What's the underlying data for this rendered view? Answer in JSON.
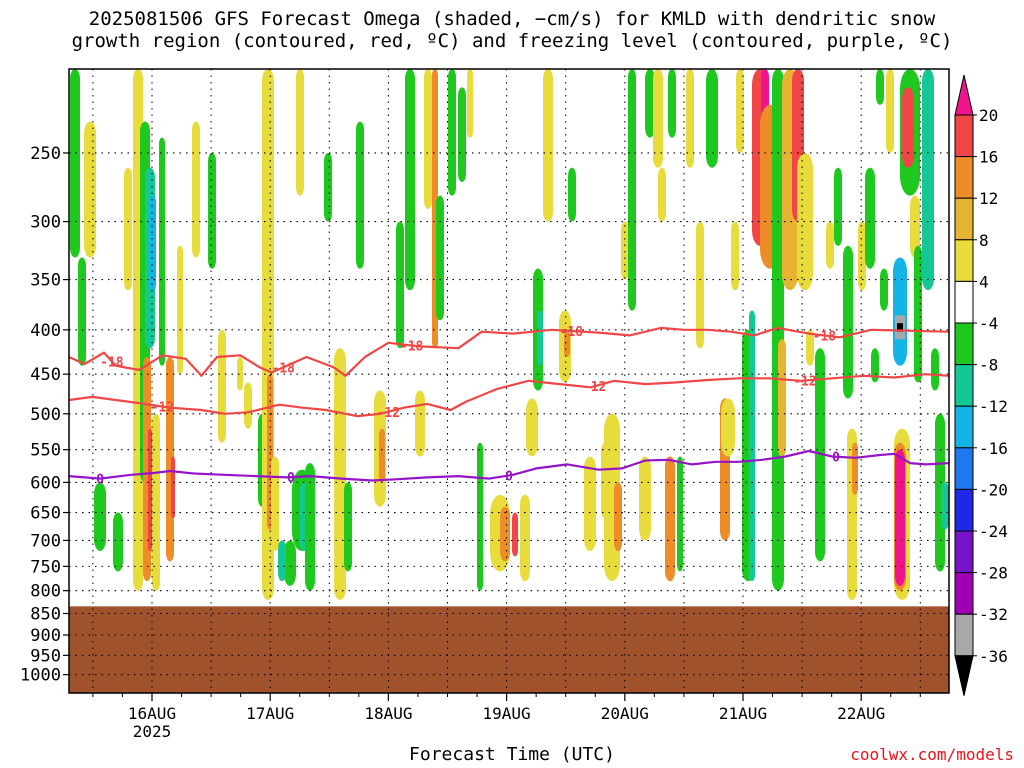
{
  "title_line1": "2025081506 GFS Forecast Omega (shaded, −cm/s) for KMLD with dendritic snow",
  "title_line2": "growth region (contoured, red, ºC) and freezing level (contoured, purple, ºC)",
  "xlabel": "Forecast Time (UTC)",
  "credit": "coolwx.com/models",
  "colors": {
    "green": "#1ec81e",
    "teal": "#14c896",
    "cyan": "#14b4e6",
    "yellow": "#e8dc3c",
    "gold": "#e6b432",
    "orange": "#ee8c28",
    "red": "#f04646",
    "magenta": "#f0148c",
    "ground": "#a0522d",
    "dendritic": "#f04646",
    "freezing": "#9614c8"
  },
  "chart_data": {
    "type": "heatmap",
    "y_axis": {
      "ticks": [
        250,
        300,
        350,
        400,
        450,
        500,
        550,
        600,
        650,
        700,
        750,
        800,
        850,
        900,
        950,
        1000
      ],
      "range": [
        200,
        1050
      ],
      "scale": "log",
      "inverted": true
    },
    "x_axis": {
      "tick_labels": [
        "16AUG",
        "17AUG",
        "18AUG",
        "19AUG",
        "20AUG",
        "21AUG",
        "22AUG"
      ],
      "secondary_label": "2025",
      "range": [
        "2025-08-15 06Z",
        "2025-08-22 21Z"
      ]
    },
    "colorbar": {
      "levels": [
        20,
        16,
        12,
        8,
        4,
        -4,
        -8,
        -12,
        -16,
        -20,
        -24,
        -28,
        -32,
        -36
      ],
      "colors": [
        "#f0148c",
        "#f04646",
        "#ee8c28",
        "#e6b432",
        "#e8dc3c",
        "#ffffff",
        "#1ec81e",
        "#14c896",
        "#14b4e6",
        "#1e78f0",
        "#1e28e6",
        "#7814c8",
        "#a000b4",
        "#a8a8a8",
        "#000000"
      ]
    },
    "ground_level_hPa": 834,
    "contours": [
      {
        "label": "-18",
        "color": "red",
        "points": [
          [
            0,
            430
          ],
          [
            0.2,
            438
          ],
          [
            0.45,
            425
          ],
          [
            0.6,
            440
          ],
          [
            0.9,
            445
          ],
          [
            1.2,
            428
          ],
          [
            1.5,
            432
          ],
          [
            1.7,
            452
          ],
          [
            1.9,
            430
          ],
          [
            2.2,
            428
          ],
          [
            2.45,
            442
          ],
          [
            2.6,
            448
          ],
          [
            2.85,
            438
          ],
          [
            3.05,
            430
          ],
          [
            3.4,
            442
          ],
          [
            3.55,
            452
          ],
          [
            3.8,
            430
          ],
          [
            4.1,
            414
          ],
          [
            4.5,
            418
          ],
          [
            5.0,
            420
          ],
          [
            5.3,
            402
          ],
          [
            5.7,
            404
          ],
          [
            6.2,
            400
          ],
          [
            6.8,
            403
          ],
          [
            7.2,
            406
          ],
          [
            7.6,
            398
          ],
          [
            7.9,
            400
          ],
          [
            8.2,
            400
          ],
          [
            8.5,
            402
          ],
          [
            8.8,
            406
          ],
          [
            9.1,
            398
          ],
          [
            9.5,
            404
          ],
          [
            9.9,
            408
          ],
          [
            10.3,
            400
          ],
          [
            10.8,
            401
          ],
          [
            11.3,
            402
          ]
        ],
        "labels_at": [
          0.55,
          2.75,
          4.4,
          6.45,
          9.7
        ]
      },
      {
        "label": "-12",
        "color": "red",
        "points": [
          [
            0,
            482
          ],
          [
            0.3,
            478
          ],
          [
            0.6,
            482
          ],
          [
            0.9,
            486
          ],
          [
            1.3,
            492
          ],
          [
            1.7,
            495
          ],
          [
            2.0,
            500
          ],
          [
            2.3,
            498
          ],
          [
            2.7,
            488
          ],
          [
            3.0,
            492
          ],
          [
            3.3,
            495
          ],
          [
            3.7,
            503
          ],
          [
            4.0,
            500
          ],
          [
            4.3,
            492
          ],
          [
            4.6,
            487
          ],
          [
            4.9,
            495
          ],
          [
            5.1,
            484
          ],
          [
            5.5,
            468
          ],
          [
            5.9,
            458
          ],
          [
            6.3,
            462
          ],
          [
            6.7,
            466
          ],
          [
            7.0,
            458
          ],
          [
            7.4,
            462
          ],
          [
            7.8,
            460
          ],
          [
            8.2,
            457
          ],
          [
            8.6,
            455
          ],
          [
            9.0,
            455
          ],
          [
            9.4,
            458
          ],
          [
            9.8,
            455
          ],
          [
            10.2,
            452
          ],
          [
            10.6,
            454
          ],
          [
            11.0,
            450
          ],
          [
            11.3,
            452
          ]
        ],
        "labels_at": [
          1.2,
          4.1,
          6.75,
          9.45
        ]
      },
      {
        "label": "0",
        "color": "purple",
        "points": [
          [
            0,
            590
          ],
          [
            0.4,
            594
          ],
          [
            0.8,
            588
          ],
          [
            1.1,
            585
          ],
          [
            1.3,
            582
          ],
          [
            1.6,
            586
          ],
          [
            2.0,
            588
          ],
          [
            2.4,
            590
          ],
          [
            2.8,
            592
          ],
          [
            3.1,
            590
          ],
          [
            3.5,
            594
          ],
          [
            3.9,
            597
          ],
          [
            4.2,
            595
          ],
          [
            4.6,
            592
          ],
          [
            5.0,
            590
          ],
          [
            5.4,
            594
          ],
          [
            5.7,
            588
          ],
          [
            6.0,
            578
          ],
          [
            6.4,
            572
          ],
          [
            6.8,
            580
          ],
          [
            7.1,
            578
          ],
          [
            7.4,
            566
          ],
          [
            7.7,
            565
          ],
          [
            8.0,
            572
          ],
          [
            8.3,
            568
          ],
          [
            8.6,
            568
          ],
          [
            8.9,
            565
          ],
          [
            9.2,
            560
          ],
          [
            9.5,
            552
          ],
          [
            9.8,
            560
          ],
          [
            10.1,
            562
          ],
          [
            10.4,
            558
          ],
          [
            10.6,
            556
          ],
          [
            10.8,
            570
          ],
          [
            11.0,
            572
          ],
          [
            11.3,
            570
          ]
        ],
        "labels_at": [
          0.4,
          2.85,
          5.65,
          9.85
        ]
      }
    ]
  }
}
